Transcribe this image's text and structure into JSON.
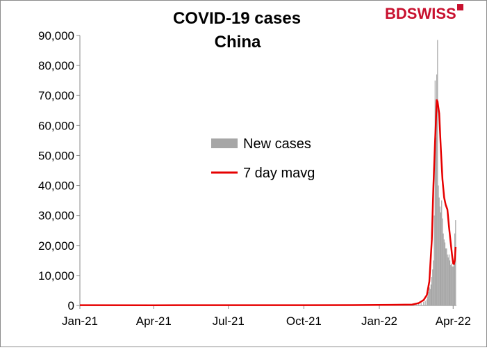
{
  "brand": {
    "part1": "BD",
    "part2": "SWISS"
  },
  "chart_data": {
    "type": "bar",
    "title": "COVID-19 cases",
    "subtitle": "China",
    "ylim": [
      0,
      90000
    ],
    "yticks": [
      "0",
      "10,000",
      "20,000",
      "30,000",
      "40,000",
      "50,000",
      "60,000",
      "70,000",
      "80,000",
      "90,000"
    ],
    "ytick_values": [
      0,
      10000,
      20000,
      30000,
      40000,
      50000,
      60000,
      70000,
      80000,
      90000
    ],
    "xticks": [
      "Jan-21",
      "Apr-21",
      "Jul-21",
      "Oct-21",
      "Jan-22",
      "Apr-22"
    ],
    "xtick_dates": [
      "2021-01-01",
      "2021-04-01",
      "2021-07-01",
      "2021-10-01",
      "2022-01-01",
      "2022-04-01"
    ],
    "xlim": [
      "2021-01-01",
      "2022-04-05"
    ],
    "legend_position": "center",
    "grid": false,
    "series": [
      {
        "name": "New cases",
        "type": "bar",
        "color": "#a6a6a6",
        "x": [
          "2021-01-01",
          "2021-01-08",
          "2021-01-15",
          "2021-01-22",
          "2021-02-01",
          "2021-03-01",
          "2021-04-01",
          "2021-05-01",
          "2021-06-01",
          "2021-07-01",
          "2021-08-01",
          "2021-09-01",
          "2021-10-01",
          "2021-11-01",
          "2021-12-01",
          "2021-12-25",
          "2022-01-05",
          "2022-01-15",
          "2022-01-25",
          "2022-02-01",
          "2022-02-08",
          "2022-02-15",
          "2022-02-18",
          "2022-02-21",
          "2022-02-24",
          "2022-02-26",
          "2022-02-28",
          "2022-03-01",
          "2022-03-02",
          "2022-03-03",
          "2022-03-04",
          "2022-03-05",
          "2022-03-06",
          "2022-03-07",
          "2022-03-08",
          "2022-03-09",
          "2022-03-10",
          "2022-03-11",
          "2022-03-12",
          "2022-03-13",
          "2022-03-14",
          "2022-03-15",
          "2022-03-16",
          "2022-03-17",
          "2022-03-18",
          "2022-03-19",
          "2022-03-20",
          "2022-03-21",
          "2022-03-22",
          "2022-03-23",
          "2022-03-24",
          "2022-03-25",
          "2022-03-26",
          "2022-03-27",
          "2022-03-28",
          "2022-03-29",
          "2022-03-30",
          "2022-03-31",
          "2022-04-01",
          "2022-04-02",
          "2022-04-03",
          "2022-04-04"
        ],
        "values": [
          150,
          300,
          200,
          100,
          50,
          30,
          20,
          50,
          30,
          80,
          150,
          80,
          60,
          100,
          200,
          250,
          400,
          350,
          300,
          150,
          200,
          300,
          500,
          800,
          1200,
          1500,
          2000,
          3000,
          4500,
          6000,
          5500,
          7000,
          9500,
          12000,
          15000,
          30000,
          75000,
          56000,
          77000,
          88500,
          40000,
          36000,
          33000,
          31000,
          35000,
          29000,
          24000,
          22000,
          21000,
          19000,
          19000,
          17000,
          16000,
          17000,
          15000,
          13500,
          14000,
          13000,
          13000,
          14000,
          24000,
          28500
        ]
      },
      {
        "name": "7 day mavg",
        "type": "line",
        "color": "#e60000",
        "x": [
          "2021-01-01",
          "2021-04-01",
          "2021-07-01",
          "2021-10-01",
          "2021-12-15",
          "2022-01-15",
          "2022-02-10",
          "2022-02-18",
          "2022-02-24",
          "2022-02-28",
          "2022-03-03",
          "2022-03-06",
          "2022-03-08",
          "2022-03-10",
          "2022-03-12",
          "2022-03-13",
          "2022-03-15",
          "2022-03-17",
          "2022-03-19",
          "2022-03-21",
          "2022-03-23",
          "2022-03-25",
          "2022-03-27",
          "2022-03-29",
          "2022-03-31",
          "2022-04-01",
          "2022-04-02",
          "2022-04-03",
          "2022-04-04"
        ],
        "values": [
          100,
          80,
          90,
          100,
          150,
          200,
          300,
          800,
          1800,
          3500,
          8000,
          22000,
          40000,
          55000,
          68500,
          68000,
          64000,
          52000,
          42000,
          36000,
          33500,
          32000,
          26000,
          21000,
          16000,
          14000,
          13800,
          15000,
          19500
        ]
      }
    ]
  }
}
